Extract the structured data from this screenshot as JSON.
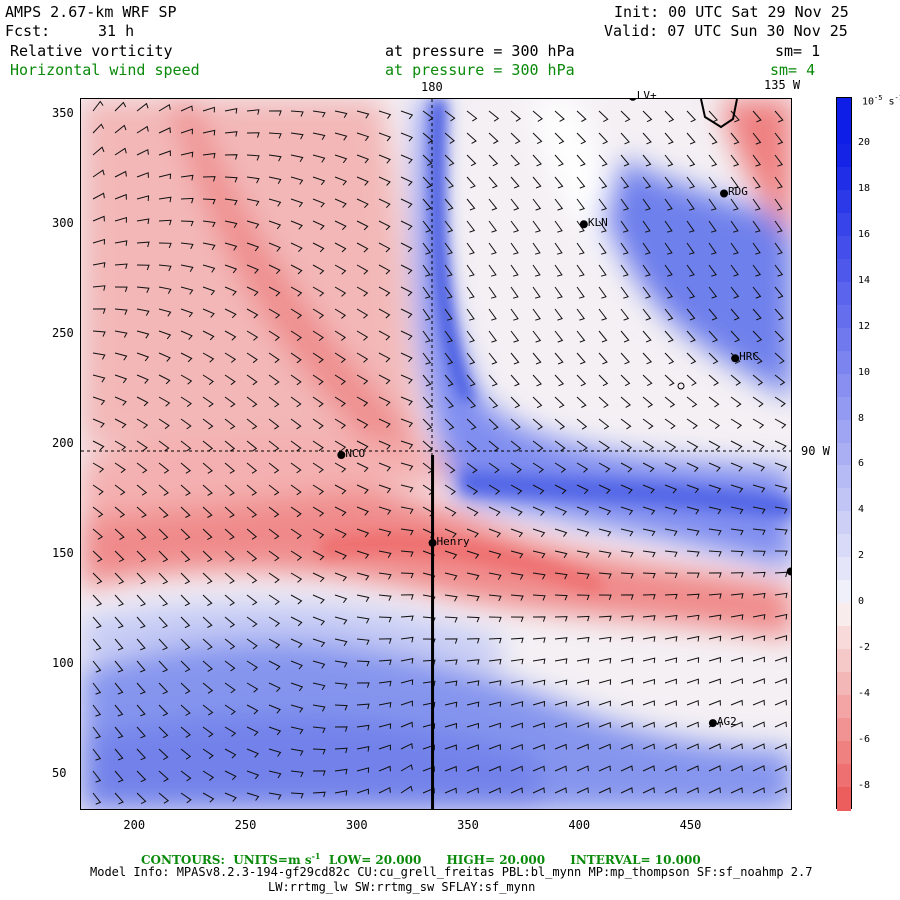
{
  "header": {
    "model": "AMPS 2.67-km WRF SP",
    "fcst_label": "Fcst:",
    "fcst_value": "31 h",
    "init": "Init: 00 UTC Sat 29 Nov 25",
    "valid": "Valid: 07 UTC Sun 30 Nov 25",
    "field1": "Relative vorticity",
    "field1_level": "at pressure =  300 hPa",
    "field1_sm": "sm= 1",
    "field2": "Horizontal wind speed",
    "field2_level": "at pressure =  300 hPa",
    "field2_sm": "sm= 4"
  },
  "map": {
    "lon_labels": {
      "top": "180",
      "top_right": "135 W",
      "right": "90 W"
    },
    "x_ticks": [
      "200",
      "250",
      "300",
      "350",
      "400",
      "450"
    ],
    "y_ticks": [
      "350",
      "300",
      "250",
      "200",
      "150",
      "100",
      "50"
    ],
    "x_range": [
      176,
      496
    ],
    "y_range": [
      33,
      357
    ],
    "stations": [
      {
        "name": "LV+",
        "x": 424,
        "y": 358
      },
      {
        "name": "RDG",
        "x": 465,
        "y": 314
      },
      {
        "name": "KLN",
        "x": 402,
        "y": 300
      },
      {
        "name": "HRC",
        "x": 470,
        "y": 239
      },
      {
        "name": "NCO",
        "x": 293,
        "y": 195
      },
      {
        "name": "Henry",
        "x": 334,
        "y": 155
      },
      {
        "name": "AG2",
        "x": 460,
        "y": 73
      },
      {
        "name": "",
        "x": 495,
        "y": 142
      }
    ],
    "cross_section": {
      "x": 334,
      "y_from": 33,
      "y_to": 195
    },
    "crosshair": {
      "x": 332,
      "y": 195
    }
  },
  "colorbar": {
    "units": "10^-5 s^-1",
    "labels": [
      "20",
      "18",
      "16",
      "14",
      "12",
      "10",
      "8",
      "6",
      "4",
      "2",
      "0",
      "-2",
      "-4",
      "-6",
      "-8"
    ],
    "values": [
      20,
      18,
      16,
      14,
      12,
      10,
      8,
      6,
      4,
      2,
      0,
      -2,
      -4,
      -6,
      -8
    ],
    "range": [
      -9,
      22
    ]
  },
  "footer": {
    "contours_label": "CONTOURS:",
    "units_label": "UNITS=m s",
    "units_sup": "-1",
    "low": "LOW=  20.000",
    "high": "HIGH=  20.000",
    "interval": "INTERVAL=   10.000",
    "model_info": "Model Info: MPASv8.2.3-194-gf29cd82c CU:cu_grell_freitas PBL:bl_mynn MP:mp_thompson SF:sf_noahmp 2.7",
    "model_info2": "LW:rrtmg_lw SW:rrtmg_sw SFLAY:sf_mynn"
  },
  "colors": {
    "positive": "#1a33e0",
    "negative": "#ee5555",
    "contour_text": "#0a8a0a"
  }
}
